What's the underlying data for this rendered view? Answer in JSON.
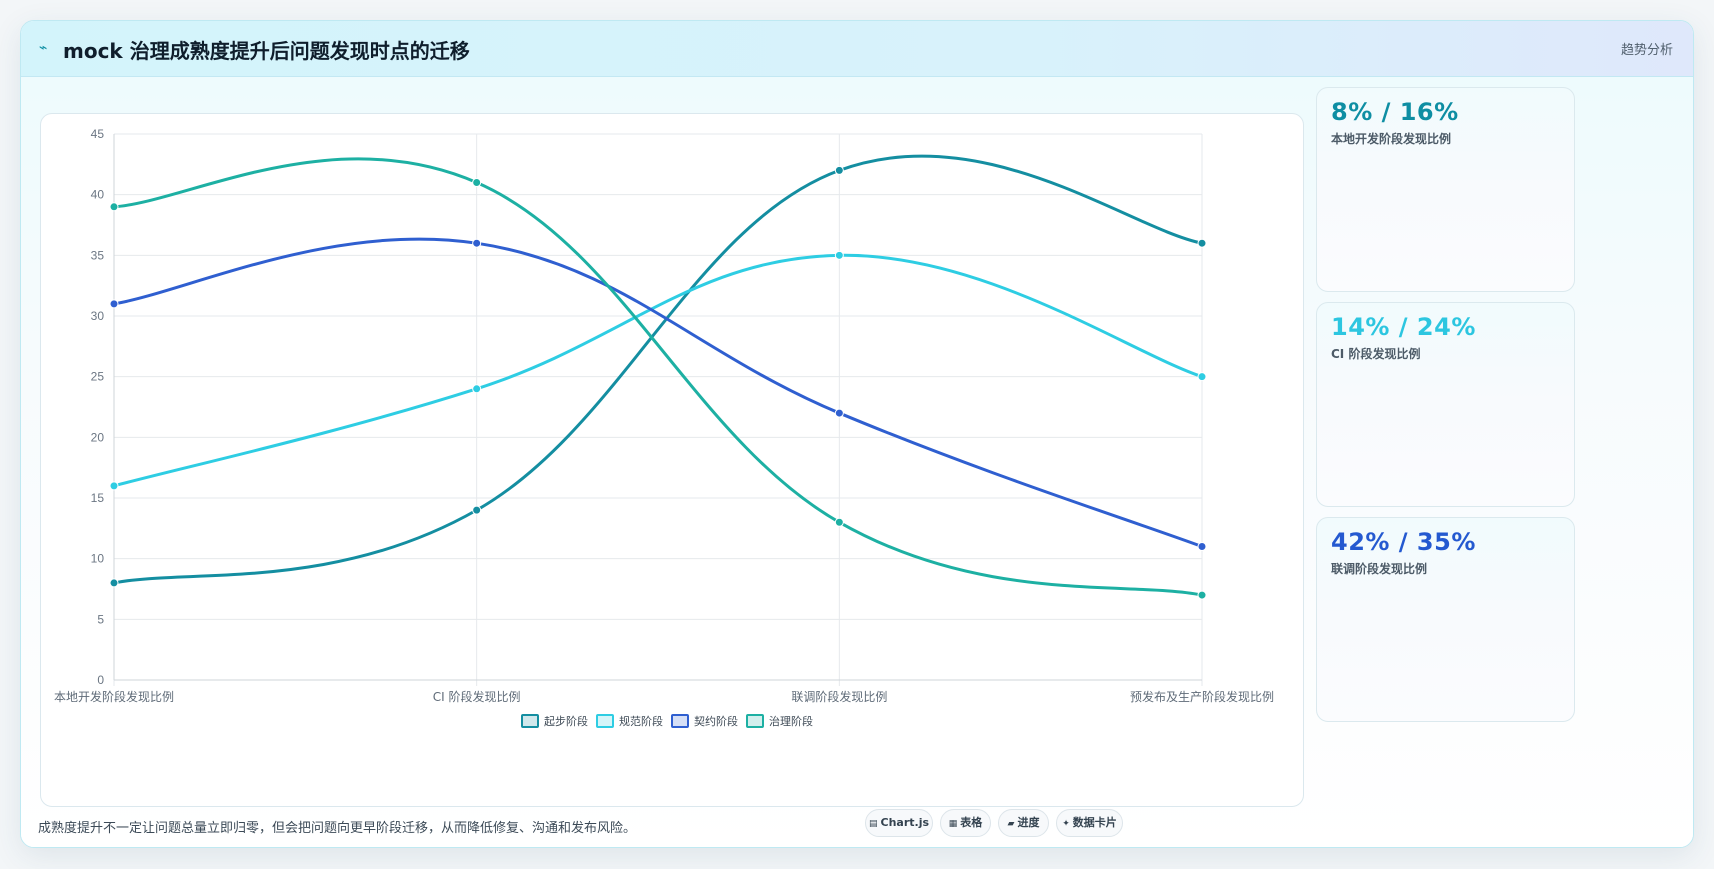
{
  "header": {
    "icon": "pulse-icon",
    "title": "mock 治理成熟度提升后问题发现时点的迁移",
    "tag": "趋势分析"
  },
  "side_cards": [
    {
      "value": "8% / 16%",
      "label": "本地开发阶段发现比例",
      "color": "#0e8ea3"
    },
    {
      "value": "14% / 24%",
      "label": "CI 阶段发现比例",
      "color": "#2cc6e0"
    },
    {
      "value": "42% / 35%",
      "label": "联调阶段发现比例",
      "color": "#2459d0"
    }
  ],
  "footer": {
    "note": "成熟度提升不一定让问题总量立即归零，但会把问题向更早阶段迁移，从而降低修复、沟通和发布风险。",
    "chips": [
      {
        "icon": "chart-icon",
        "glyph": "▤",
        "label": "Chart.js"
      },
      {
        "icon": "table-icon",
        "glyph": "▦",
        "label": "表格"
      },
      {
        "icon": "progress-icon",
        "glyph": "▰",
        "label": "进度"
      },
      {
        "icon": "card-icon",
        "glyph": "✦",
        "label": "数据卡片"
      }
    ]
  },
  "chart_data": {
    "type": "line",
    "categories": [
      "本地开发阶段发现比例",
      "CI 阶段发现比例",
      "联调阶段发现比例",
      "预发布及生产阶段发现比例"
    ],
    "ylim": [
      0,
      45
    ],
    "yticks": [
      0,
      5,
      10,
      15,
      20,
      25,
      30,
      35,
      40,
      45
    ],
    "grid": true,
    "legend_position": "bottom",
    "series": [
      {
        "name": "起步阶段",
        "values": [
          8,
          14,
          42,
          36
        ],
        "color": "#148ea1"
      },
      {
        "name": "规范阶段",
        "values": [
          16,
          24,
          35,
          25
        ],
        "color": "#2ecde3"
      },
      {
        "name": "契约阶段",
        "values": [
          31,
          36,
          22,
          11
        ],
        "color": "#2f5fd0"
      },
      {
        "name": "治理阶段",
        "values": [
          39,
          41,
          13,
          7
        ],
        "color": "#1db0a3"
      }
    ]
  }
}
